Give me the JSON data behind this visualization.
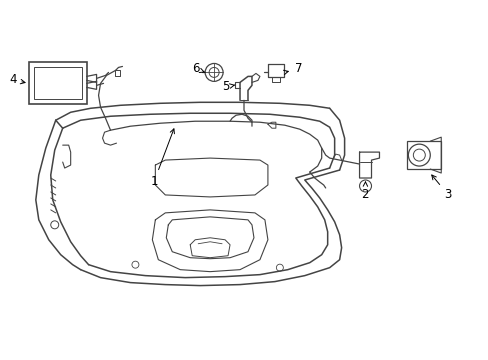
{
  "bg_color": "#ffffff",
  "line_color": "#444444",
  "label_color": "#000000",
  "label_fontsize": 8.5,
  "fig_width": 4.89,
  "fig_height": 3.6,
  "dpi": 100
}
